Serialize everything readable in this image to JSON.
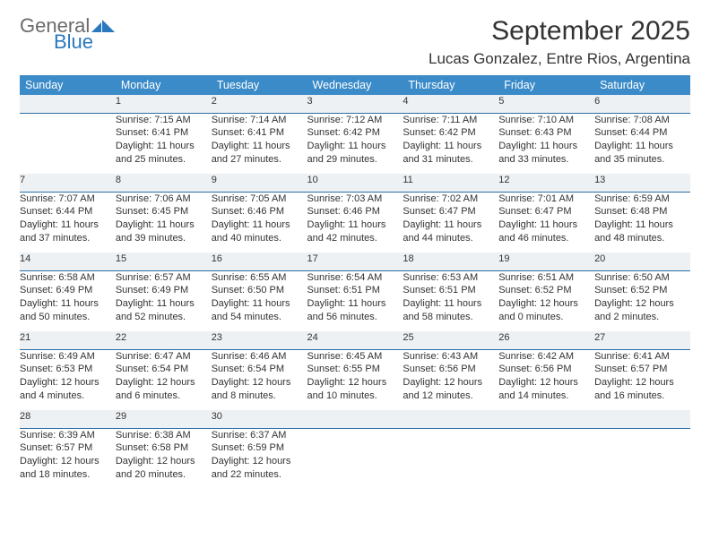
{
  "logo": {
    "top": "General",
    "bottom": "Blue"
  },
  "title": "September 2025",
  "location": "Lucas Gonzalez, Entre Rios, Argentina",
  "colors": {
    "header_bg": "#3b8bc9",
    "header_text": "#ffffff",
    "daynum_bg": "#eef1f3",
    "daynum_border": "#2a6fa7",
    "logo_gray": "#6b6b6b",
    "logo_blue": "#2a78bd"
  },
  "weekdays": [
    "Sunday",
    "Monday",
    "Tuesday",
    "Wednesday",
    "Thursday",
    "Friday",
    "Saturday"
  ],
  "weeks": [
    {
      "nums": [
        "",
        "1",
        "2",
        "3",
        "4",
        "5",
        "6"
      ],
      "cells": [
        null,
        {
          "sunrise": "Sunrise: 7:15 AM",
          "sunset": "Sunset: 6:41 PM",
          "day1": "Daylight: 11 hours",
          "day2": "and 25 minutes."
        },
        {
          "sunrise": "Sunrise: 7:14 AM",
          "sunset": "Sunset: 6:41 PM",
          "day1": "Daylight: 11 hours",
          "day2": "and 27 minutes."
        },
        {
          "sunrise": "Sunrise: 7:12 AM",
          "sunset": "Sunset: 6:42 PM",
          "day1": "Daylight: 11 hours",
          "day2": "and 29 minutes."
        },
        {
          "sunrise": "Sunrise: 7:11 AM",
          "sunset": "Sunset: 6:42 PM",
          "day1": "Daylight: 11 hours",
          "day2": "and 31 minutes."
        },
        {
          "sunrise": "Sunrise: 7:10 AM",
          "sunset": "Sunset: 6:43 PM",
          "day1": "Daylight: 11 hours",
          "day2": "and 33 minutes."
        },
        {
          "sunrise": "Sunrise: 7:08 AM",
          "sunset": "Sunset: 6:44 PM",
          "day1": "Daylight: 11 hours",
          "day2": "and 35 minutes."
        }
      ]
    },
    {
      "nums": [
        "7",
        "8",
        "9",
        "10",
        "11",
        "12",
        "13"
      ],
      "cells": [
        {
          "sunrise": "Sunrise: 7:07 AM",
          "sunset": "Sunset: 6:44 PM",
          "day1": "Daylight: 11 hours",
          "day2": "and 37 minutes."
        },
        {
          "sunrise": "Sunrise: 7:06 AM",
          "sunset": "Sunset: 6:45 PM",
          "day1": "Daylight: 11 hours",
          "day2": "and 39 minutes."
        },
        {
          "sunrise": "Sunrise: 7:05 AM",
          "sunset": "Sunset: 6:46 PM",
          "day1": "Daylight: 11 hours",
          "day2": "and 40 minutes."
        },
        {
          "sunrise": "Sunrise: 7:03 AM",
          "sunset": "Sunset: 6:46 PM",
          "day1": "Daylight: 11 hours",
          "day2": "and 42 minutes."
        },
        {
          "sunrise": "Sunrise: 7:02 AM",
          "sunset": "Sunset: 6:47 PM",
          "day1": "Daylight: 11 hours",
          "day2": "and 44 minutes."
        },
        {
          "sunrise": "Sunrise: 7:01 AM",
          "sunset": "Sunset: 6:47 PM",
          "day1": "Daylight: 11 hours",
          "day2": "and 46 minutes."
        },
        {
          "sunrise": "Sunrise: 6:59 AM",
          "sunset": "Sunset: 6:48 PM",
          "day1": "Daylight: 11 hours",
          "day2": "and 48 minutes."
        }
      ]
    },
    {
      "nums": [
        "14",
        "15",
        "16",
        "17",
        "18",
        "19",
        "20"
      ],
      "cells": [
        {
          "sunrise": "Sunrise: 6:58 AM",
          "sunset": "Sunset: 6:49 PM",
          "day1": "Daylight: 11 hours",
          "day2": "and 50 minutes."
        },
        {
          "sunrise": "Sunrise: 6:57 AM",
          "sunset": "Sunset: 6:49 PM",
          "day1": "Daylight: 11 hours",
          "day2": "and 52 minutes."
        },
        {
          "sunrise": "Sunrise: 6:55 AM",
          "sunset": "Sunset: 6:50 PM",
          "day1": "Daylight: 11 hours",
          "day2": "and 54 minutes."
        },
        {
          "sunrise": "Sunrise: 6:54 AM",
          "sunset": "Sunset: 6:51 PM",
          "day1": "Daylight: 11 hours",
          "day2": "and 56 minutes."
        },
        {
          "sunrise": "Sunrise: 6:53 AM",
          "sunset": "Sunset: 6:51 PM",
          "day1": "Daylight: 11 hours",
          "day2": "and 58 minutes."
        },
        {
          "sunrise": "Sunrise: 6:51 AM",
          "sunset": "Sunset: 6:52 PM",
          "day1": "Daylight: 12 hours",
          "day2": "and 0 minutes."
        },
        {
          "sunrise": "Sunrise: 6:50 AM",
          "sunset": "Sunset: 6:52 PM",
          "day1": "Daylight: 12 hours",
          "day2": "and 2 minutes."
        }
      ]
    },
    {
      "nums": [
        "21",
        "22",
        "23",
        "24",
        "25",
        "26",
        "27"
      ],
      "cells": [
        {
          "sunrise": "Sunrise: 6:49 AM",
          "sunset": "Sunset: 6:53 PM",
          "day1": "Daylight: 12 hours",
          "day2": "and 4 minutes."
        },
        {
          "sunrise": "Sunrise: 6:47 AM",
          "sunset": "Sunset: 6:54 PM",
          "day1": "Daylight: 12 hours",
          "day2": "and 6 minutes."
        },
        {
          "sunrise": "Sunrise: 6:46 AM",
          "sunset": "Sunset: 6:54 PM",
          "day1": "Daylight: 12 hours",
          "day2": "and 8 minutes."
        },
        {
          "sunrise": "Sunrise: 6:45 AM",
          "sunset": "Sunset: 6:55 PM",
          "day1": "Daylight: 12 hours",
          "day2": "and 10 minutes."
        },
        {
          "sunrise": "Sunrise: 6:43 AM",
          "sunset": "Sunset: 6:56 PM",
          "day1": "Daylight: 12 hours",
          "day2": "and 12 minutes."
        },
        {
          "sunrise": "Sunrise: 6:42 AM",
          "sunset": "Sunset: 6:56 PM",
          "day1": "Daylight: 12 hours",
          "day2": "and 14 minutes."
        },
        {
          "sunrise": "Sunrise: 6:41 AM",
          "sunset": "Sunset: 6:57 PM",
          "day1": "Daylight: 12 hours",
          "day2": "and 16 minutes."
        }
      ]
    },
    {
      "nums": [
        "28",
        "29",
        "30",
        "",
        "",
        "",
        ""
      ],
      "cells": [
        {
          "sunrise": "Sunrise: 6:39 AM",
          "sunset": "Sunset: 6:57 PM",
          "day1": "Daylight: 12 hours",
          "day2": "and 18 minutes."
        },
        {
          "sunrise": "Sunrise: 6:38 AM",
          "sunset": "Sunset: 6:58 PM",
          "day1": "Daylight: 12 hours",
          "day2": "and 20 minutes."
        },
        {
          "sunrise": "Sunrise: 6:37 AM",
          "sunset": "Sunset: 6:59 PM",
          "day1": "Daylight: 12 hours",
          "day2": "and 22 minutes."
        },
        null,
        null,
        null,
        null
      ]
    }
  ]
}
